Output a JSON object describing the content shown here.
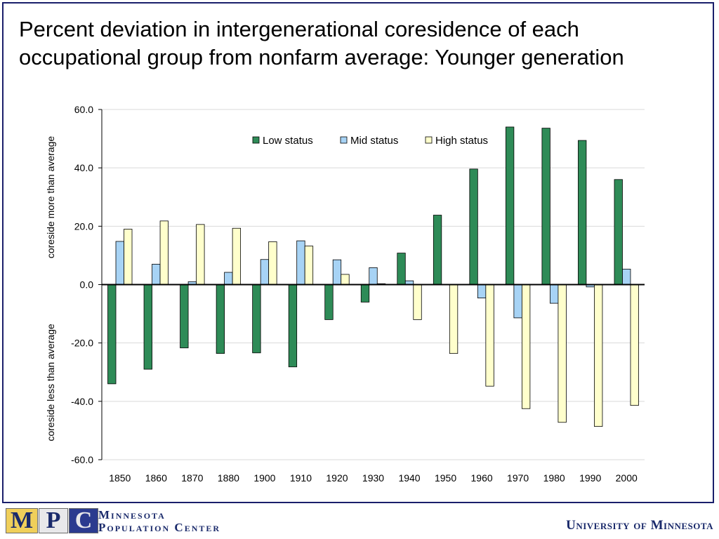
{
  "title": "Percent deviation in intergenerational coresidence of each occupational group from nonfarm average: Younger generation",
  "footer": {
    "mpc_letters": [
      "M",
      "P",
      "C"
    ],
    "mpc_line1": "Minnesota",
    "mpc_line2": "Population Center",
    "university": "University of Minnesota"
  },
  "chart_data": {
    "type": "bar",
    "categories": [
      "1850",
      "1860",
      "1870",
      "1880",
      "1900",
      "1910",
      "1920",
      "1930",
      "1940",
      "1950",
      "1960",
      "1970",
      "1980",
      "1990",
      "2000"
    ],
    "series": [
      {
        "name": "Low status",
        "color": "#2e8b57",
        "values": [
          -34.0,
          -29.0,
          -21.7,
          -23.6,
          -23.4,
          -28.2,
          -12.0,
          -6.0,
          10.8,
          23.8,
          39.6,
          54.0,
          53.6,
          49.4,
          36.0
        ]
      },
      {
        "name": "Mid status",
        "color": "#a7d3f5",
        "values": [
          14.8,
          7.0,
          1.0,
          4.2,
          8.6,
          15.0,
          8.5,
          5.8,
          1.3,
          0.0,
          -4.6,
          -11.4,
          -6.4,
          -0.8,
          5.3
        ]
      },
      {
        "name": "High status",
        "color": "#ffffcc",
        "values": [
          19.0,
          21.8,
          20.6,
          19.3,
          14.7,
          13.2,
          3.5,
          0.3,
          -12.0,
          -23.6,
          -34.8,
          -42.5,
          -47.2,
          -48.6,
          -41.4
        ]
      }
    ],
    "ylim": [
      -60,
      60
    ],
    "yticks": [
      "60.0",
      "40.0",
      "20.0",
      "0.0",
      "-20.0",
      "-40.0",
      "-60.0"
    ],
    "ylabel_upper": "coreside more than average",
    "ylabel_lower": "coreside less than average",
    "legend_position": "top-center",
    "grid": true
  }
}
